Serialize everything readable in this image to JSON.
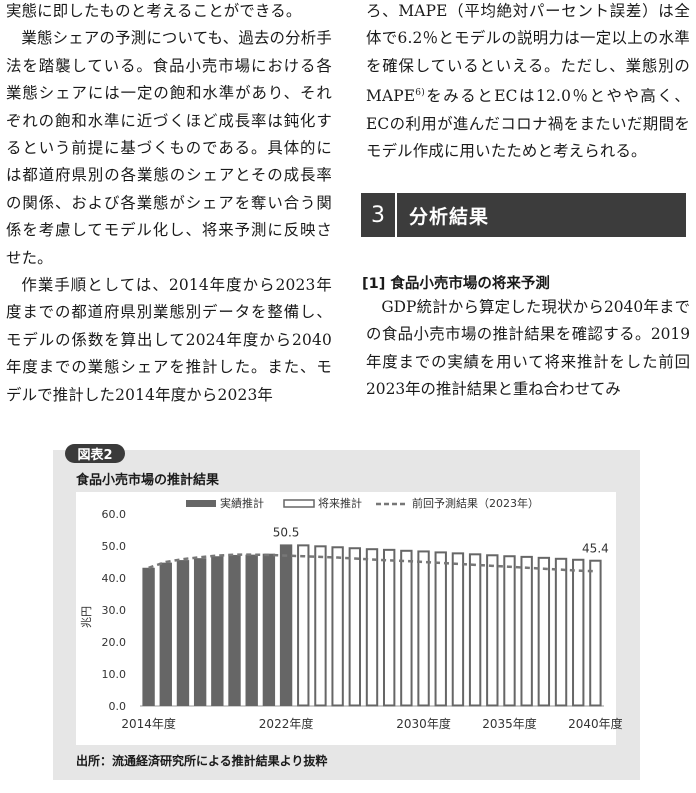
{
  "left_column": {
    "p1": "実態に即したものと考えることができる。",
    "p2": "業態シェアの予測についても、過去の分析手法を踏襲している。食品小売市場における各業態シェアには一定の飽和水準があり、それぞれの飽和水準に近づくほど成長率は鈍化するという前提に基づくものである。具体的には都道府県別の各業態のシェアとその成長率の関係、および各業態がシェアを奪い合う関係を考慮してモデル化し、将来予測に反映させた。",
    "p3": "作業手順としては、2014年度から2023年度までの都道府県別業態別データを整備し、モデルの係数を算出して2024年度から2040年度までの業態シェアを推計した。また、モデルで推計した2014年度から2023年"
  },
  "right_column": {
    "p1": "ろ、MAPE（平均絶対パーセント誤差）は全体で6.2％とモデルの説明力は一定以上の水準を確保しているといえる。ただし、業態別のMAPE",
    "p1_sup": "6)",
    "p1_rest": "をみるとECは12.0％とやや高く、ECの利用が進んだコロナ禍をまたいだ期間をモデル作成に用いたためと考えられる。",
    "section_number": "3",
    "section_title": "分析結果",
    "subheading": "[1]  食品小売市場の将来予測",
    "p2": "GDP統計から算定した現状から2040年までの食品小売市場の推計結果を確認する。2019年度までの実績を用いて将来推計をした前回2023年の推計結果と重ね合わせてみ"
  },
  "figure": {
    "tag": "図表2",
    "title": "食品小売市場の推計結果",
    "source": "出所：流通経済研究所による推計結果より抜粋"
  },
  "chart_data": {
    "type": "bar",
    "categories": [
      "2014年度",
      "2015年度",
      "2016年度",
      "2017年度",
      "2018年度",
      "2019年度",
      "2020年度",
      "2021年度",
      "2022年度",
      "2023年度",
      "2024年度",
      "2025年度",
      "2026年度",
      "2027年度",
      "2028年度",
      "2029年度",
      "2030年度",
      "2031年度",
      "2032年度",
      "2033年度",
      "2034年度",
      "2035年度",
      "2036年度",
      "2037年度",
      "2038年度",
      "2039年度",
      "2040年度"
    ],
    "x_tick_labels": [
      {
        "index": 0,
        "label": "2014年度"
      },
      {
        "index": 8,
        "label": "2022年度"
      },
      {
        "index": 16,
        "label": "2030年度"
      },
      {
        "index": 21,
        "label": "2035年度"
      },
      {
        "index": 26,
        "label": "2040年度"
      }
    ],
    "ylabel": "兆円",
    "ylim": [
      0,
      60
    ],
    "yticks": [
      "0.0",
      "10.0",
      "20.0",
      "30.0",
      "40.0",
      "50.0",
      "60.0"
    ],
    "grid": false,
    "legend_position": "top",
    "series": [
      {
        "name": "実績推計",
        "style": "solid",
        "color": "#666666",
        "values": [
          43.2,
          44.8,
          45.6,
          46.2,
          46.8,
          47.2,
          47.3,
          47.6,
          50.5,
          null,
          null,
          null,
          null,
          null,
          null,
          null,
          null,
          null,
          null,
          null,
          null,
          null,
          null,
          null,
          null,
          null,
          null
        ]
      },
      {
        "name": "将来推計",
        "style": "hollow",
        "color": "#666666",
        "values": [
          null,
          null,
          null,
          null,
          null,
          null,
          null,
          null,
          null,
          50.2,
          49.9,
          49.6,
          49.3,
          49.0,
          48.8,
          48.5,
          48.3,
          48.0,
          47.7,
          47.4,
          47.1,
          46.8,
          46.6,
          46.3,
          46.0,
          45.7,
          45.4
        ]
      },
      {
        "name": "前回予測結果（2023年）",
        "style": "dashed-line",
        "color": "#777777",
        "values": [
          43.2,
          45.0,
          45.9,
          46.5,
          47.0,
          47.3,
          47.3,
          47.2,
          47.0,
          46.8,
          46.6,
          46.4,
          46.1,
          45.8,
          45.5,
          45.3,
          45.0,
          44.7,
          44.4,
          44.1,
          43.8,
          43.5,
          43.2,
          42.9,
          42.6,
          42.3,
          42.1
        ]
      }
    ],
    "data_labels": [
      {
        "index": 8,
        "value": "50.5"
      },
      {
        "index": 26,
        "value": "45.4"
      }
    ]
  }
}
